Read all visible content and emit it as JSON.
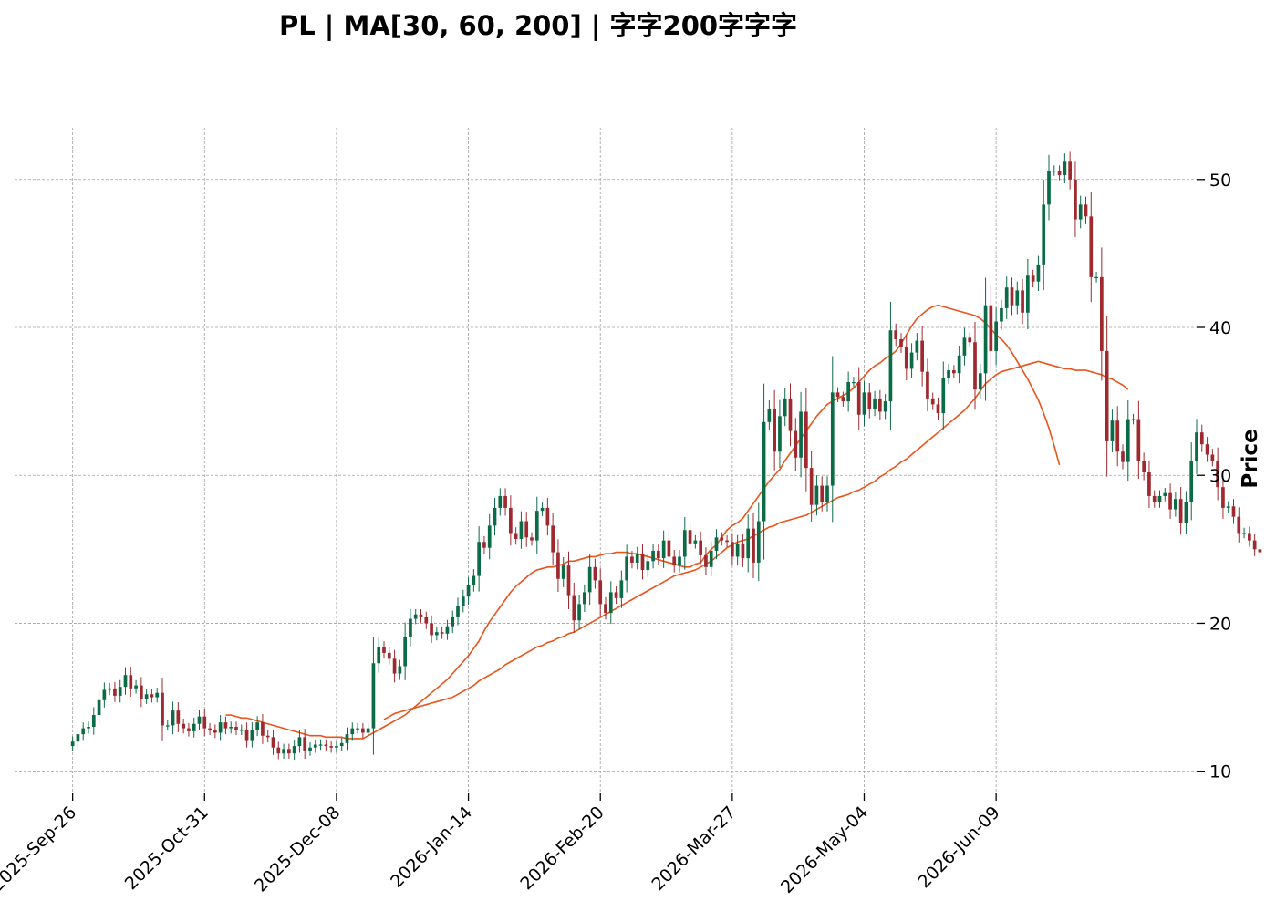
{
  "chart_data": {
    "type": "candlestick",
    "title": "PL  |  MA[30, 60, 200]  |  字字200字字字",
    "ylabel": "Price",
    "xlabel": "",
    "ylim": [
      8.5,
      53.5
    ],
    "y_ticks": [
      10,
      20,
      30,
      40,
      50
    ],
    "x_tick_labels": [
      "2025-Sep-26",
      "2025-Oct-31",
      "2025-Dec-08",
      "2026-Jan-14",
      "2026-Feb-20",
      "2026-Mar-27",
      "2026-May-04",
      "2026-Jun-09"
    ],
    "x_tick_indices": [
      0,
      25,
      50,
      75,
      100,
      125,
      150,
      175
    ],
    "x_range": [
      -11,
      213
    ],
    "grid": true,
    "colors": {
      "up": "#0c6b47",
      "down": "#9e2a2f",
      "ma": "#e8541c",
      "grid": "#a0a0a0"
    },
    "close": [
      12.0,
      12.5,
      12.9,
      13.0,
      13.8,
      14.8,
      15.5,
      15.6,
      15.1,
      15.7,
      16.5,
      15.6,
      15.8,
      14.9,
      15.2,
      15.0,
      15.3,
      13.1,
      13.1,
      14.1,
      13.2,
      12.9,
      12.7,
      13.2,
      13.7,
      12.9,
      12.8,
      12.6,
      13.3,
      12.9,
      13.0,
      12.8,
      12.8,
      12.1,
      12.8,
      13.3,
      12.4,
      12.3,
      11.6,
      11.2,
      11.5,
      11.2,
      11.7,
      12.3,
      11.4,
      11.6,
      11.8,
      11.8,
      11.7,
      11.6,
      11.7,
      11.9,
      12.5,
      12.9,
      12.9,
      12.6,
      12.9,
      17.3,
      18.4,
      18.0,
      17.6,
      16.6,
      17.1,
      19.1,
      20.3,
      20.6,
      20.4,
      20.0,
      19.2,
      19.4,
      19.3,
      19.8,
      20.4,
      21.2,
      21.8,
      22.6,
      23.2,
      25.5,
      25.1,
      26.6,
      27.8,
      28.6,
      27.8,
      26.1,
      25.7,
      26.9,
      25.8,
      25.6,
      27.6,
      27.8,
      26.6,
      24.8,
      23.0,
      23.9,
      21.9,
      20.2,
      21.3,
      22.1,
      23.8,
      22.9,
      21.3,
      20.7,
      22.1,
      21.7,
      22.9,
      24.5,
      24.1,
      24.7,
      23.6,
      24.2,
      24.9,
      24.4,
      25.6,
      24.5,
      23.9,
      24.5,
      26.3,
      25.4,
      25.6,
      24.6,
      23.8,
      24.9,
      25.8,
      25.6,
      25.5,
      24.5,
      25.4,
      24.4,
      26.4,
      24.1,
      26.9,
      33.6,
      34.5,
      31.6,
      34.0,
      35.2,
      33.0,
      31.2,
      34.3,
      30.5,
      28.0,
      29.3,
      28.2,
      29.3,
      35.6,
      35.3,
      35.0,
      36.3,
      36.3,
      34.1,
      35.6,
      34.5,
      35.2,
      34.3,
      35.0,
      39.8,
      39.2,
      38.7,
      37.2,
      38.3,
      39.1,
      37.0,
      35.2,
      34.8,
      34.2,
      36.6,
      37.1,
      36.9,
      38.1,
      39.3,
      39.0,
      35.8,
      36.9,
      41.5,
      38.4,
      40.4,
      41.3,
      42.7,
      41.5,
      42.5,
      41.0,
      43.5,
      43.1,
      44.2,
      48.3,
      50.6,
      50.6,
      50.3,
      51.2,
      50.0,
      47.3,
      48.3,
      47.5,
      43.4,
      43.4,
      38.4,
      32.3,
      33.7,
      31.6,
      30.9,
      33.8,
      33.8,
      31.0,
      30.2,
      28.6,
      28.2,
      28.6,
      28.8,
      27.7,
      28.4,
      26.8,
      28.2,
      31.0,
      32.9,
      32.1,
      31.4,
      31.0,
      29.2,
      27.8,
      27.9,
      27.2,
      26.1,
      26.1,
      25.6,
      25.0,
      24.8
    ],
    "ma_series": [
      {
        "window": 30,
        "start_index": 29,
        "values": [
          13.8,
          13.8,
          13.7,
          13.6,
          13.6,
          13.5,
          13.4,
          13.3,
          13.2,
          13.1,
          13.0,
          12.9,
          12.8,
          12.7,
          12.6,
          12.5,
          12.4,
          12.4,
          12.4,
          12.3,
          12.3,
          12.3,
          12.3,
          12.2,
          12.2,
          12.2,
          12.2,
          12.4,
          12.6,
          12.8,
          13.0,
          13.2,
          13.4,
          13.6,
          13.8,
          14.1,
          14.4,
          14.7,
          15.0,
          15.3,
          15.6,
          15.9,
          16.2,
          16.6,
          17.0,
          17.4,
          17.8,
          18.3,
          18.8,
          19.5,
          20.1,
          20.6,
          21.1,
          21.6,
          22.1,
          22.5,
          22.8,
          23.1,
          23.4,
          23.6,
          23.7,
          23.8,
          23.8,
          23.9,
          24.0,
          24.2,
          24.2,
          24.3,
          24.4,
          24.5,
          24.5,
          24.6,
          24.7,
          24.7,
          24.8,
          24.8,
          24.8,
          24.7,
          24.7,
          24.6,
          24.5,
          24.4,
          24.3,
          24.2,
          24.1,
          24.0,
          23.9,
          23.8,
          23.8,
          24.0,
          24.1,
          24.6,
          25.0,
          25.3,
          25.8,
          26.3,
          26.6,
          26.8,
          27.1,
          27.6,
          28.1,
          28.6,
          29.1,
          29.6,
          30.0,
          30.4,
          31.0,
          31.5,
          32.0,
          32.5,
          33.0,
          33.5,
          34.0,
          34.4,
          34.8,
          35.0,
          35.2,
          35.4,
          35.6,
          35.9,
          36.3,
          36.7,
          37.1,
          37.4,
          37.6,
          37.9,
          38.1,
          38.4,
          38.9,
          39.5,
          40.1,
          40.6,
          40.9,
          41.2,
          41.4,
          41.5,
          41.4,
          41.3,
          41.2,
          41.1,
          41.0,
          40.9,
          40.8,
          40.6,
          40.3,
          39.9,
          39.5,
          39.2,
          38.8,
          38.3,
          37.7,
          37.1,
          36.5,
          35.8,
          35.1,
          34.2,
          33.2,
          32.0,
          30.7
        ]
      },
      {
        "window": 60,
        "start_index": 59,
        "values": [
          13.5,
          13.7,
          13.9,
          14.0,
          14.1,
          14.2,
          14.3,
          14.4,
          14.5,
          14.6,
          14.7,
          14.8,
          14.9,
          15.0,
          15.2,
          15.4,
          15.6,
          15.8,
          16.1,
          16.3,
          16.5,
          16.7,
          16.9,
          17.2,
          17.4,
          17.6,
          17.8,
          18.0,
          18.2,
          18.4,
          18.5,
          18.7,
          18.8,
          19.0,
          19.1,
          19.3,
          19.4,
          19.6,
          19.8,
          20.0,
          20.2,
          20.4,
          20.6,
          20.8,
          21.0,
          21.2,
          21.4,
          21.6,
          21.8,
          22.0,
          22.2,
          22.4,
          22.6,
          22.8,
          23.0,
          23.2,
          23.3,
          23.4,
          23.5,
          23.6,
          23.8,
          24.0,
          24.2,
          24.5,
          24.8,
          25.1,
          25.3,
          25.5,
          25.6,
          25.7,
          25.9,
          26.1,
          26.3,
          26.5,
          26.6,
          26.8,
          26.9,
          27.0,
          27.1,
          27.2,
          27.3,
          27.5,
          27.7,
          27.9,
          28.1,
          28.3,
          28.5,
          28.6,
          28.7,
          28.9,
          29.0,
          29.2,
          29.4,
          29.6,
          29.9,
          30.1,
          30.4,
          30.6,
          30.9,
          31.1,
          31.4,
          31.7,
          32.0,
          32.3,
          32.6,
          32.9,
          33.2,
          33.5,
          33.8,
          34.1,
          34.4,
          34.8,
          35.2,
          35.7,
          36.2,
          36.5,
          36.8,
          37.0,
          37.1,
          37.2,
          37.3,
          37.4,
          37.5,
          37.6,
          37.7,
          37.6,
          37.5,
          37.4,
          37.3,
          37.2,
          37.2,
          37.1,
          37.1,
          37.1,
          37.0,
          36.9,
          36.8,
          36.6,
          36.5,
          36.3,
          36.1,
          35.8
        ]
      }
    ]
  }
}
